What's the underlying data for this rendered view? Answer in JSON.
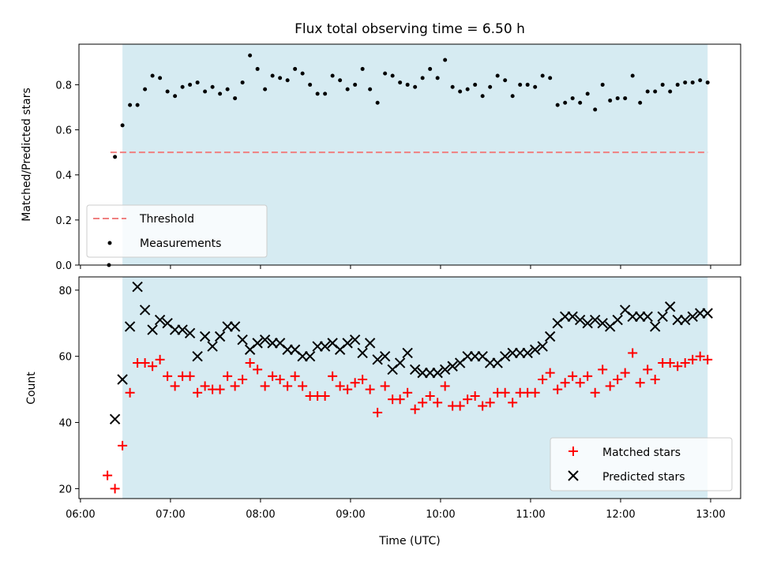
{
  "chart_data": {
    "title": "Flux total observing time = 6.50 h",
    "xlabel": "Time (UTC)",
    "x_ticks": [
      "06:00",
      "07:00",
      "08:00",
      "09:00",
      "10:00",
      "11:00",
      "12:00",
      "13:00"
    ],
    "shaded_interval": [
      "06:28",
      "12:58"
    ],
    "shade_color": "#add8e6",
    "top": {
      "type": "scatter",
      "ylabel": "Matched/Predicted stars",
      "ylim": [
        0,
        0.98
      ],
      "y_ticks": [
        "0.0",
        "0.2",
        "0.4",
        "0.6",
        "0.8"
      ],
      "threshold": {
        "name": "Threshold",
        "value": 0.5,
        "x_range": [
          "06:20",
          "12:58"
        ],
        "color": "#f08080",
        "style": "dashed"
      },
      "series": [
        {
          "name": "Measurements",
          "color": "#000000",
          "points": [
            [
              "06:19",
              0.0
            ],
            [
              "06:23",
              0.48
            ],
            [
              "06:28",
              0.62
            ],
            [
              "06:33",
              0.71
            ],
            [
              "06:38",
              0.71
            ],
            [
              "06:43",
              0.78
            ],
            [
              "06:48",
              0.84
            ],
            [
              "06:53",
              0.83
            ],
            [
              "06:58",
              0.77
            ],
            [
              "07:03",
              0.75
            ],
            [
              "07:08",
              0.79
            ],
            [
              "07:13",
              0.8
            ],
            [
              "07:18",
              0.81
            ],
            [
              "07:23",
              0.77
            ],
            [
              "07:28",
              0.79
            ],
            [
              "07:33",
              0.76
            ],
            [
              "07:38",
              0.78
            ],
            [
              "07:43",
              0.74
            ],
            [
              "07:48",
              0.81
            ],
            [
              "07:53",
              0.93
            ],
            [
              "07:58",
              0.87
            ],
            [
              "08:03",
              0.78
            ],
            [
              "08:08",
              0.84
            ],
            [
              "08:13",
              0.83
            ],
            [
              "08:18",
              0.82
            ],
            [
              "08:23",
              0.87
            ],
            [
              "08:28",
              0.85
            ],
            [
              "08:33",
              0.8
            ],
            [
              "08:38",
              0.76
            ],
            [
              "08:43",
              0.76
            ],
            [
              "08:48",
              0.84
            ],
            [
              "08:53",
              0.82
            ],
            [
              "08:58",
              0.78
            ],
            [
              "09:03",
              0.8
            ],
            [
              "09:08",
              0.87
            ],
            [
              "09:13",
              0.78
            ],
            [
              "09:18",
              0.72
            ],
            [
              "09:23",
              0.85
            ],
            [
              "09:28",
              0.84
            ],
            [
              "09:33",
              0.81
            ],
            [
              "09:38",
              0.8
            ],
            [
              "09:43",
              0.79
            ],
            [
              "09:48",
              0.83
            ],
            [
              "09:53",
              0.87
            ],
            [
              "09:58",
              0.83
            ],
            [
              "10:03",
              0.91
            ],
            [
              "10:08",
              0.79
            ],
            [
              "10:13",
              0.77
            ],
            [
              "10:18",
              0.78
            ],
            [
              "10:23",
              0.8
            ],
            [
              "10:28",
              0.75
            ],
            [
              "10:33",
              0.79
            ],
            [
              "10:38",
              0.84
            ],
            [
              "10:43",
              0.82
            ],
            [
              "10:48",
              0.75
            ],
            [
              "10:53",
              0.8
            ],
            [
              "10:58",
              0.8
            ],
            [
              "11:03",
              0.79
            ],
            [
              "11:08",
              0.84
            ],
            [
              "11:13",
              0.83
            ],
            [
              "11:18",
              0.71
            ],
            [
              "11:23",
              0.72
            ],
            [
              "11:28",
              0.74
            ],
            [
              "11:33",
              0.72
            ],
            [
              "11:38",
              0.76
            ],
            [
              "11:43",
              0.69
            ],
            [
              "11:48",
              0.8
            ],
            [
              "11:53",
              0.73
            ],
            [
              "11:58",
              0.74
            ],
            [
              "12:03",
              0.74
            ],
            [
              "12:08",
              0.84
            ],
            [
              "12:13",
              0.72
            ],
            [
              "12:18",
              0.77
            ],
            [
              "12:23",
              0.77
            ],
            [
              "12:28",
              0.8
            ],
            [
              "12:33",
              0.77
            ],
            [
              "12:38",
              0.8
            ],
            [
              "12:43",
              0.81
            ],
            [
              "12:48",
              0.81
            ],
            [
              "12:53",
              0.82
            ],
            [
              "12:58",
              0.81
            ]
          ]
        }
      ],
      "legend": {
        "position": "lower left",
        "entries": [
          "Threshold",
          "Measurements"
        ]
      }
    },
    "bottom": {
      "type": "scatter",
      "ylabel": "Count",
      "ylim": [
        17,
        84
      ],
      "y_ticks": [
        "20",
        "40",
        "60",
        "80"
      ],
      "series": [
        {
          "name": "Matched stars",
          "marker": "+",
          "color": "#ff0000",
          "points": [
            [
              "06:18",
              24
            ],
            [
              "06:23",
              20
            ],
            [
              "06:28",
              33
            ],
            [
              "06:33",
              49
            ],
            [
              "06:38",
              58
            ],
            [
              "06:43",
              58
            ],
            [
              "06:48",
              57
            ],
            [
              "06:53",
              59
            ],
            [
              "06:58",
              54
            ],
            [
              "07:03",
              51
            ],
            [
              "07:08",
              54
            ],
            [
              "07:13",
              54
            ],
            [
              "07:18",
              49
            ],
            [
              "07:23",
              51
            ],
            [
              "07:28",
              50
            ],
            [
              "07:33",
              50
            ],
            [
              "07:38",
              54
            ],
            [
              "07:43",
              51
            ],
            [
              "07:48",
              53
            ],
            [
              "07:53",
              58
            ],
            [
              "07:58",
              56
            ],
            [
              "08:03",
              51
            ],
            [
              "08:08",
              54
            ],
            [
              "08:13",
              53
            ],
            [
              "08:18",
              51
            ],
            [
              "08:23",
              54
            ],
            [
              "08:28",
              51
            ],
            [
              "08:33",
              48
            ],
            [
              "08:38",
              48
            ],
            [
              "08:43",
              48
            ],
            [
              "08:48",
              54
            ],
            [
              "08:53",
              51
            ],
            [
              "08:58",
              50
            ],
            [
              "09:03",
              52
            ],
            [
              "09:08",
              53
            ],
            [
              "09:13",
              50
            ],
            [
              "09:18",
              43
            ],
            [
              "09:23",
              51
            ],
            [
              "09:28",
              47
            ],
            [
              "09:33",
              47
            ],
            [
              "09:38",
              49
            ],
            [
              "09:43",
              44
            ],
            [
              "09:48",
              46
            ],
            [
              "09:53",
              48
            ],
            [
              "09:58",
              46
            ],
            [
              "10:03",
              51
            ],
            [
              "10:08",
              45
            ],
            [
              "10:13",
              45
            ],
            [
              "10:18",
              47
            ],
            [
              "10:23",
              48
            ],
            [
              "10:28",
              45
            ],
            [
              "10:33",
              46
            ],
            [
              "10:38",
              49
            ],
            [
              "10:43",
              49
            ],
            [
              "10:48",
              46
            ],
            [
              "10:53",
              49
            ],
            [
              "10:58",
              49
            ],
            [
              "11:03",
              49
            ],
            [
              "11:08",
              53
            ],
            [
              "11:13",
              55
            ],
            [
              "11:18",
              50
            ],
            [
              "11:23",
              52
            ],
            [
              "11:28",
              54
            ],
            [
              "11:33",
              52
            ],
            [
              "11:38",
              54
            ],
            [
              "11:43",
              49
            ],
            [
              "11:48",
              56
            ],
            [
              "11:53",
              51
            ],
            [
              "11:58",
              53
            ],
            [
              "12:03",
              55
            ],
            [
              "12:08",
              61
            ],
            [
              "12:13",
              52
            ],
            [
              "12:18",
              56
            ],
            [
              "12:23",
              53
            ],
            [
              "12:28",
              58
            ],
            [
              "12:33",
              58
            ],
            [
              "12:38",
              57
            ],
            [
              "12:43",
              58
            ],
            [
              "12:48",
              59
            ],
            [
              "12:53",
              60
            ],
            [
              "12:58",
              59
            ]
          ]
        },
        {
          "name": "Predicted stars",
          "marker": "x",
          "color": "#000000",
          "points": [
            [
              "06:23",
              41
            ],
            [
              "06:28",
              53
            ],
            [
              "06:33",
              69
            ],
            [
              "06:38",
              81
            ],
            [
              "06:43",
              74
            ],
            [
              "06:48",
              68
            ],
            [
              "06:53",
              71
            ],
            [
              "06:58",
              70
            ],
            [
              "07:03",
              68
            ],
            [
              "07:08",
              68
            ],
            [
              "07:13",
              67
            ],
            [
              "07:18",
              60
            ],
            [
              "07:23",
              66
            ],
            [
              "07:28",
              63
            ],
            [
              "07:33",
              66
            ],
            [
              "07:38",
              69
            ],
            [
              "07:43",
              69
            ],
            [
              "07:48",
              65
            ],
            [
              "07:53",
              62
            ],
            [
              "07:58",
              64
            ],
            [
              "08:03",
              65
            ],
            [
              "08:08",
              64
            ],
            [
              "08:13",
              64
            ],
            [
              "08:18",
              62
            ],
            [
              "08:23",
              62
            ],
            [
              "08:28",
              60
            ],
            [
              "08:33",
              60
            ],
            [
              "08:38",
              63
            ],
            [
              "08:43",
              63
            ],
            [
              "08:48",
              64
            ],
            [
              "08:53",
              62
            ],
            [
              "08:58",
              64
            ],
            [
              "09:03",
              65
            ],
            [
              "09:08",
              61
            ],
            [
              "09:13",
              64
            ],
            [
              "09:18",
              59
            ],
            [
              "09:23",
              60
            ],
            [
              "09:28",
              56
            ],
            [
              "09:33",
              58
            ],
            [
              "09:38",
              61
            ],
            [
              "09:43",
              56
            ],
            [
              "09:48",
              55
            ],
            [
              "09:53",
              55
            ],
            [
              "09:58",
              55
            ],
            [
              "10:03",
              56
            ],
            [
              "10:08",
              57
            ],
            [
              "10:13",
              58
            ],
            [
              "10:18",
              60
            ],
            [
              "10:23",
              60
            ],
            [
              "10:28",
              60
            ],
            [
              "10:33",
              58
            ],
            [
              "10:38",
              58
            ],
            [
              "10:43",
              60
            ],
            [
              "10:48",
              61
            ],
            [
              "10:53",
              61
            ],
            [
              "10:58",
              61
            ],
            [
              "11:03",
              62
            ],
            [
              "11:08",
              63
            ],
            [
              "11:13",
              66
            ],
            [
              "11:18",
              70
            ],
            [
              "11:23",
              72
            ],
            [
              "11:28",
              72
            ],
            [
              "11:33",
              71
            ],
            [
              "11:38",
              70
            ],
            [
              "11:43",
              71
            ],
            [
              "11:48",
              70
            ],
            [
              "11:53",
              69
            ],
            [
              "11:58",
              71
            ],
            [
              "12:03",
              74
            ],
            [
              "12:08",
              72
            ],
            [
              "12:13",
              72
            ],
            [
              "12:18",
              72
            ],
            [
              "12:23",
              69
            ],
            [
              "12:28",
              72
            ],
            [
              "12:33",
              75
            ],
            [
              "12:38",
              71
            ],
            [
              "12:43",
              71
            ],
            [
              "12:48",
              72
            ],
            [
              "12:53",
              73
            ],
            [
              "12:58",
              73
            ]
          ]
        }
      ],
      "legend": {
        "position": "lower right",
        "entries": [
          "Matched stars",
          "Predicted stars"
        ]
      }
    }
  }
}
